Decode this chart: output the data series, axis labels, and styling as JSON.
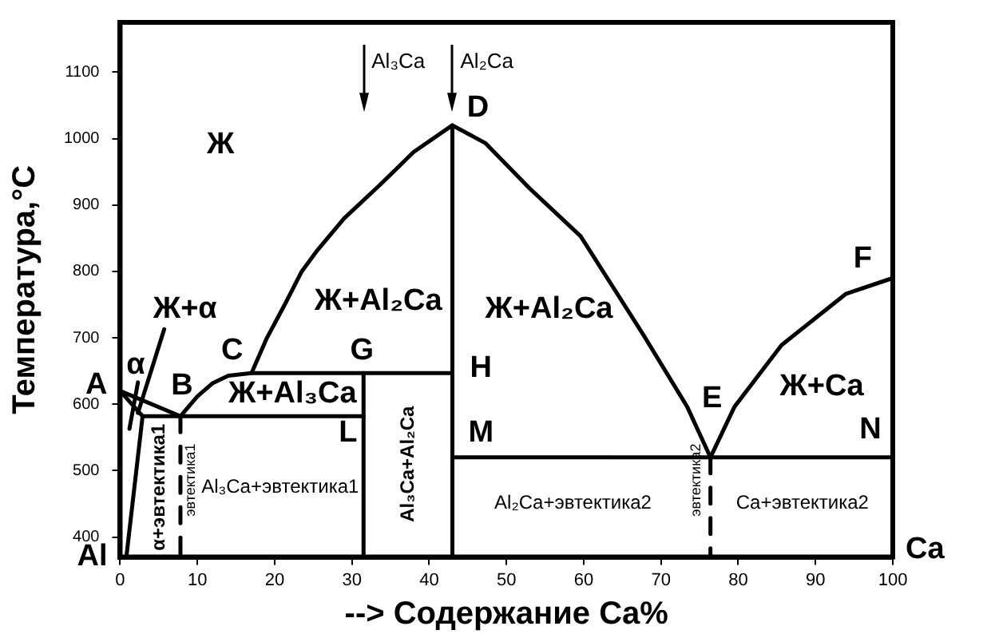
{
  "chart_data": {
    "type": "line",
    "xlabel": "--> Содержание Ca%",
    "ylabel": "Температура,°C",
    "xlim": [
      0,
      100
    ],
    "xticks": [
      0,
      10,
      20,
      30,
      40,
      50,
      60,
      70,
      80,
      90,
      100
    ],
    "ylim": [
      370,
      1175
    ],
    "yticks": [
      400,
      500,
      600,
      700,
      800,
      900,
      1000,
      1100
    ],
    "grid": false,
    "legend": false,
    "marker": "none",
    "series": [
      {
        "color": "#000000",
        "x": [
          0,
          7.8,
          10,
          12,
          14,
          17,
          19,
          21.3,
          23.5,
          25.4,
          29,
          33.6,
          38,
          43,
          47.3,
          53,
          59.6,
          67.8,
          73.4,
          76.4,
          79.5,
          85.6,
          93.9,
          100
        ],
        "values": [
          620,
          582,
          612,
          632,
          643,
          647,
          700,
          750,
          800,
          830,
          880,
          930,
          980,
          1020,
          993,
          925,
          853,
          703,
          596,
          520,
          596,
          689,
          766,
          790
        ]
      },
      {
        "color": "#000000",
        "x": [
          0,
          2.9
        ],
        "values": [
          620,
          582
        ]
      },
      {
        "color": "#000000",
        "x": [
          0.8,
          2.9
        ],
        "values": [
          370,
          582
        ]
      },
      {
        "color": "#000000",
        "x": [
          2.9,
          31.5
        ],
        "values": [
          582,
          582
        ]
      },
      {
        "color": "#000000",
        "x": [
          17,
          43
        ],
        "values": [
          647,
          647
        ]
      },
      {
        "color": "#000000",
        "x": [
          31.5,
          31.5
        ],
        "values": [
          370,
          647
        ]
      },
      {
        "color": "#000000",
        "x": [
          43,
          43
        ],
        "values": [
          370,
          1020
        ]
      },
      {
        "color": "#000000",
        "x": [
          43,
          100
        ],
        "values": [
          520,
          520
        ]
      },
      {
        "color": "#000000",
        "x": [
          7.8,
          7.8
        ],
        "values": [
          582,
          370
        ],
        "line_style": "dashed"
      },
      {
        "color": "#000000",
        "x": [
          76.4,
          76.4
        ],
        "values": [
          520,
          370
        ],
        "line_style": "dashed"
      },
      {
        "color": "#000000",
        "x": [
          2.3,
          5.7
        ],
        "values": [
          587,
          713
        ]
      },
      {
        "color": "#000000",
        "x": [
          1.2,
          2.3
        ],
        "values": [
          563,
          633
        ]
      }
    ],
    "annotations": [
      "Ж",
      "Ж+α",
      "α",
      "A",
      "B",
      "C",
      "G",
      "D",
      "H",
      "M",
      "L",
      "E",
      "F",
      "N",
      "Ж+Al₂Ca",
      "Ж+Al₂Ca",
      "Ж+Al₃Ca",
      "Ж+Ca",
      "Al₃Ca+эвтектика1",
      "Al₂Ca+эвтектика2",
      "Ca+эвтектика2",
      "Al",
      "Ca",
      "Al₃Ca",
      "Al₂Ca",
      "Al₃Ca+Al₂Ca",
      "α+эвтектика1",
      "эвтектика1",
      "эвтектика2"
    ]
  }
}
